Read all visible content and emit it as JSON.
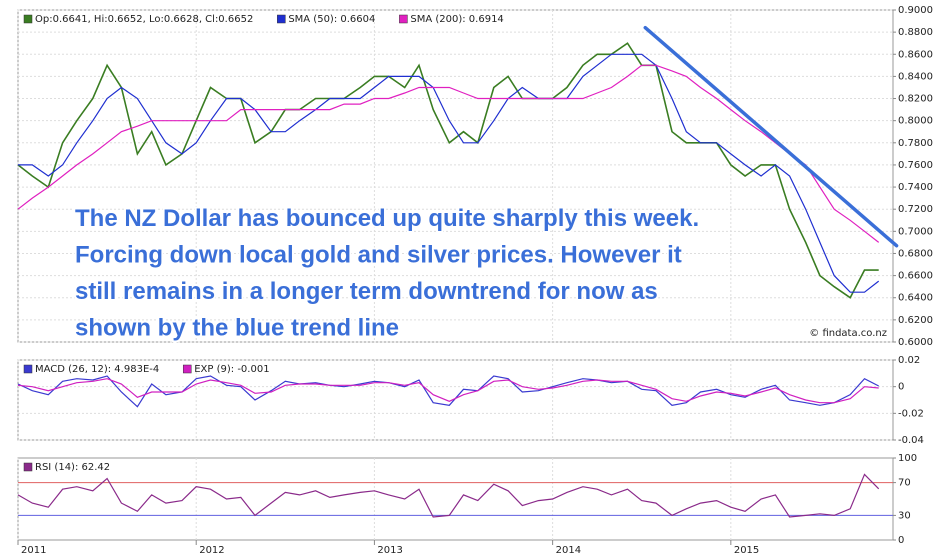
{
  "chart_data": [
    {
      "type": "line",
      "x": [
        2011.0,
        2011.08,
        2011.17,
        2011.25,
        2011.33,
        2011.42,
        2011.5,
        2011.58,
        2011.67,
        2011.75,
        2011.83,
        2011.92,
        2012.0,
        2012.08,
        2012.17,
        2012.25,
        2012.33,
        2012.42,
        2012.5,
        2012.58,
        2012.67,
        2012.75,
        2012.83,
        2012.92,
        2013.0,
        2013.08,
        2013.17,
        2013.25,
        2013.33,
        2013.42,
        2013.5,
        2013.58,
        2013.67,
        2013.75,
        2013.83,
        2013.92,
        2014.0,
        2014.08,
        2014.17,
        2014.25,
        2014.33,
        2014.42,
        2014.5,
        2014.58,
        2014.67,
        2014.75,
        2014.83,
        2014.92,
        2015.0,
        2015.08,
        2015.17,
        2015.25,
        2015.33,
        2015.42,
        2015.5,
        2015.58,
        2015.67,
        2015.75,
        2015.83
      ],
      "xlim": [
        2011.0,
        2015.91
      ],
      "xticks": [
        2011,
        2012,
        2013,
        2014,
        2015
      ],
      "ylim": [
        0.6,
        0.9
      ],
      "yticks": [
        {
          "value": 0.6,
          "label": "0.6000"
        },
        {
          "value": 0.62,
          "label": "0.6200"
        },
        {
          "value": 0.64,
          "label": "0.6400"
        },
        {
          "value": 0.66,
          "label": "0.6600"
        },
        {
          "value": 0.68,
          "label": "0.6800"
        },
        {
          "value": 0.7,
          "label": "0.7000"
        },
        {
          "value": 0.72,
          "label": "0.7200"
        },
        {
          "value": 0.74,
          "label": "0.7400"
        },
        {
          "value": 0.76,
          "label": "0.7600"
        },
        {
          "value": 0.78,
          "label": "0.7800"
        },
        {
          "value": 0.8,
          "label": "0.8000"
        },
        {
          "value": 0.82,
          "label": "0.8200"
        },
        {
          "value": 0.84,
          "label": "0.8400"
        },
        {
          "value": 0.86,
          "label": "0.8600"
        },
        {
          "value": 0.88,
          "label": "0.8800"
        },
        {
          "value": 0.9,
          "label": "0.9000"
        }
      ],
      "grid": true,
      "series": [
        {
          "name": "Op:0.6641, Hi:0.6652, Lo:0.6628, Cl:0.6652",
          "color": "#3a7d22",
          "values": [
            0.76,
            0.75,
            0.74,
            0.78,
            0.8,
            0.82,
            0.85,
            0.83,
            0.77,
            0.79,
            0.76,
            0.77,
            0.8,
            0.83,
            0.82,
            0.82,
            0.78,
            0.79,
            0.81,
            0.81,
            0.82,
            0.82,
            0.82,
            0.83,
            0.84,
            0.84,
            0.83,
            0.85,
            0.81,
            0.78,
            0.79,
            0.78,
            0.83,
            0.84,
            0.82,
            0.82,
            0.82,
            0.83,
            0.85,
            0.86,
            0.86,
            0.87,
            0.85,
            0.85,
            0.79,
            0.78,
            0.78,
            0.78,
            0.76,
            0.75,
            0.76,
            0.76,
            0.72,
            0.69,
            0.66,
            0.65,
            0.64,
            0.665,
            0.665
          ]
        },
        {
          "name": "SMA (50): 0.6604",
          "color": "#1f2fd0",
          "values": [
            0.76,
            0.76,
            0.75,
            0.76,
            0.78,
            0.8,
            0.82,
            0.83,
            0.82,
            0.8,
            0.78,
            0.77,
            0.78,
            0.8,
            0.82,
            0.82,
            0.81,
            0.79,
            0.79,
            0.8,
            0.81,
            0.82,
            0.82,
            0.82,
            0.83,
            0.84,
            0.84,
            0.84,
            0.83,
            0.8,
            0.78,
            0.78,
            0.8,
            0.82,
            0.83,
            0.82,
            0.82,
            0.82,
            0.84,
            0.85,
            0.86,
            0.86,
            0.86,
            0.85,
            0.82,
            0.79,
            0.78,
            0.78,
            0.77,
            0.76,
            0.75,
            0.76,
            0.75,
            0.72,
            0.69,
            0.66,
            0.645,
            0.645,
            0.655
          ]
        },
        {
          "name": "SMA (200): 0.6914",
          "color": "#e020c0",
          "values": [
            0.72,
            0.73,
            0.74,
            0.75,
            0.76,
            0.77,
            0.78,
            0.79,
            0.795,
            0.8,
            0.8,
            0.8,
            0.8,
            0.8,
            0.8,
            0.81,
            0.81,
            0.81,
            0.81,
            0.81,
            0.81,
            0.81,
            0.815,
            0.815,
            0.82,
            0.82,
            0.825,
            0.83,
            0.83,
            0.83,
            0.825,
            0.82,
            0.82,
            0.82,
            0.82,
            0.82,
            0.82,
            0.82,
            0.82,
            0.825,
            0.83,
            0.84,
            0.85,
            0.85,
            0.845,
            0.84,
            0.83,
            0.82,
            0.81,
            0.8,
            0.79,
            0.78,
            0.77,
            0.76,
            0.74,
            0.72,
            0.71,
            0.7,
            0.69
          ]
        }
      ],
      "trend_line": {
        "color": "#3a6fd8",
        "x": [
          2014.52,
          2015.93
        ],
        "y": [
          0.884,
          0.687
        ]
      },
      "annotation_lines": [
        "The NZ Dollar has bounced up quite sharply this week.",
        "Forcing down local gold and silver prices. However it",
        "still remains in a longer term downtrend for now as",
        "shown by the blue trend line"
      ],
      "source": "© findata.co.nz"
    },
    {
      "type": "line",
      "ylim": [
        -0.04,
        0.02
      ],
      "yticks": [
        -0.04,
        -0.02,
        0,
        0.02
      ],
      "grid": true,
      "series": [
        {
          "name": "MACD (26, 12): 4.983E-4",
          "color": "#3a3ad0",
          "values": [
            0.002,
            -0.003,
            -0.006,
            0.004,
            0.006,
            0.005,
            0.008,
            -0.004,
            -0.015,
            0.002,
            -0.006,
            -0.004,
            0.006,
            0.008,
            0.001,
            0.0,
            -0.01,
            -0.003,
            0.004,
            0.002,
            0.003,
            0.001,
            0.0,
            0.002,
            0.004,
            0.003,
            0.0,
            0.005,
            -0.012,
            -0.014,
            -0.002,
            -0.003,
            0.008,
            0.006,
            -0.004,
            -0.003,
            0.0,
            0.003,
            0.006,
            0.005,
            0.003,
            0.004,
            -0.002,
            -0.003,
            -0.014,
            -0.012,
            -0.004,
            -0.002,
            -0.006,
            -0.008,
            -0.002,
            0.001,
            -0.01,
            -0.012,
            -0.014,
            -0.012,
            -0.006,
            0.006,
            0.0005
          ]
        },
        {
          "name": "EXP (9): -0.001",
          "color": "#d020c0",
          "values": [
            0.001,
            0.0,
            -0.003,
            0.0,
            0.003,
            0.004,
            0.006,
            0.002,
            -0.008,
            -0.004,
            -0.004,
            -0.004,
            0.002,
            0.005,
            0.003,
            0.001,
            -0.005,
            -0.004,
            0.001,
            0.002,
            0.002,
            0.001,
            0.001,
            0.001,
            0.003,
            0.003,
            0.001,
            0.003,
            -0.006,
            -0.011,
            -0.006,
            -0.003,
            0.004,
            0.005,
            0.0,
            -0.002,
            -0.001,
            0.001,
            0.004,
            0.005,
            0.004,
            0.004,
            0.001,
            -0.002,
            -0.009,
            -0.011,
            -0.007,
            -0.004,
            -0.005,
            -0.007,
            -0.004,
            -0.001,
            -0.006,
            -0.01,
            -0.012,
            -0.012,
            -0.009,
            0.0,
            -0.001
          ]
        }
      ]
    },
    {
      "type": "line",
      "ylim": [
        0,
        100
      ],
      "yticks": [
        0,
        30,
        70,
        100
      ],
      "grid": false,
      "reference_lines": [
        {
          "value": 70,
          "color": "#e06060"
        },
        {
          "value": 30,
          "color": "#6060e0"
        }
      ],
      "series": [
        {
          "name": "RSI (14): 62.42",
          "color": "#8a2a8a",
          "values": [
            55,
            45,
            40,
            62,
            65,
            60,
            75,
            45,
            35,
            55,
            45,
            48,
            65,
            62,
            50,
            52,
            30,
            45,
            58,
            55,
            60,
            52,
            55,
            58,
            60,
            55,
            50,
            62,
            28,
            30,
            55,
            48,
            68,
            60,
            42,
            48,
            50,
            58,
            65,
            62,
            55,
            62,
            48,
            45,
            30,
            38,
            45,
            48,
            40,
            35,
            50,
            55,
            28,
            30,
            32,
            30,
            38,
            80,
            62.42
          ]
        }
      ]
    }
  ]
}
